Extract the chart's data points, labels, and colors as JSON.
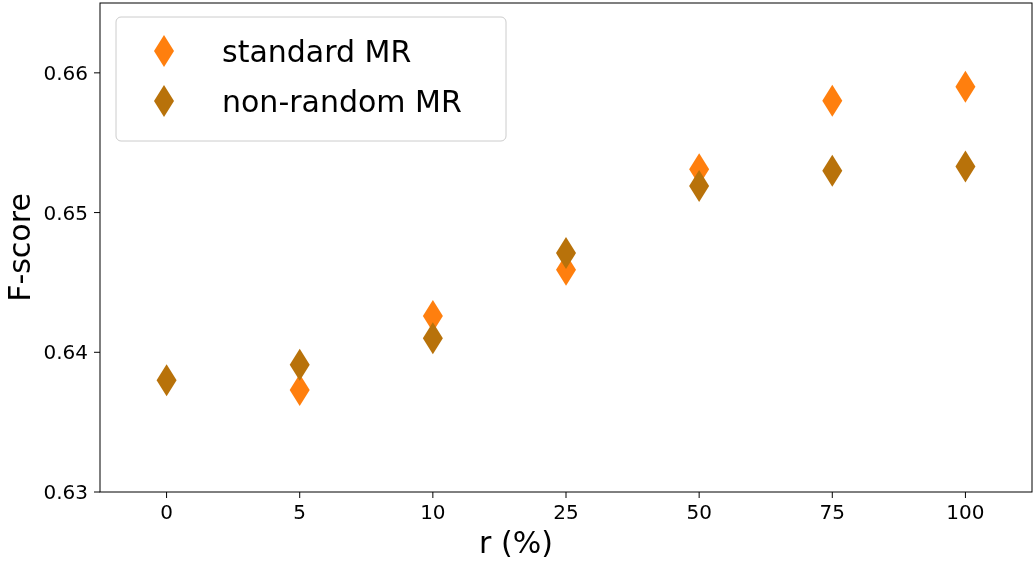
{
  "chart_data": {
    "type": "scatter",
    "xlabel": "r (%)",
    "ylabel": "F-score",
    "categories": [
      "0",
      "5",
      "10",
      "25",
      "50",
      "75",
      "100"
    ],
    "series": [
      {
        "name": "standard MR",
        "color": "#ff7f0e",
        "values": [
          null,
          0.6373,
          0.6426,
          0.6459,
          0.6531,
          0.658,
          0.659
        ]
      },
      {
        "name": "non-random MR",
        "color": "#b8720a",
        "values": [
          0.638,
          0.6391,
          0.641,
          0.6471,
          0.6519,
          0.653,
          0.6533
        ]
      }
    ],
    "ylim": [
      0.63,
      0.665
    ],
    "yticks": [
      0.63,
      0.64,
      0.65,
      0.66
    ],
    "marker": "diamond",
    "legend": "top left",
    "grid": false
  }
}
